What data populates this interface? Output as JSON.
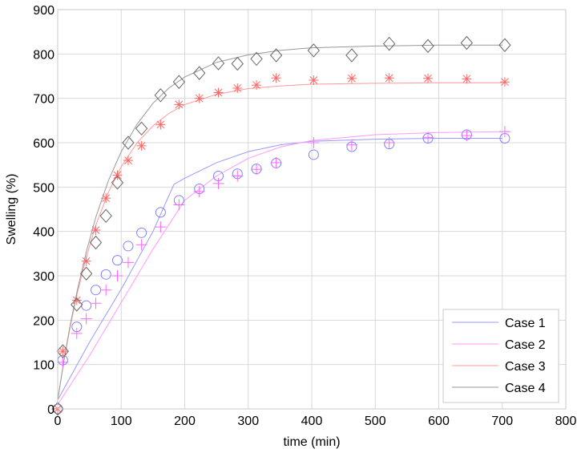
{
  "chart_data": {
    "type": "scatter",
    "title": "",
    "xlabel": "time (min)",
    "ylabel": "Swelling (%)",
    "xlim": [
      0,
      800
    ],
    "ylim": [
      0,
      900
    ],
    "xticks": [
      0,
      100,
      200,
      300,
      400,
      500,
      600,
      700,
      800
    ],
    "yticks": [
      0,
      100,
      200,
      300,
      400,
      500,
      600,
      700,
      800,
      900
    ],
    "grid": true,
    "legend_position": "bottom-right",
    "x": [
      0,
      8,
      30,
      45,
      60,
      76,
      94,
      111,
      132,
      162,
      191,
      223,
      253,
      283,
      313,
      344,
      403,
      463,
      522,
      583,
      644,
      704
    ],
    "series": [
      {
        "name": "Case 1",
        "color": "#8080ff",
        "marker": "circle",
        "values": [
          0,
          110,
          185,
          233,
          268,
          303,
          335,
          367,
          397,
          443,
          470,
          496,
          525,
          530,
          541,
          554,
          573,
          591,
          597,
          610,
          618,
          610
        ],
        "line_x": [
          0,
          50,
          100,
          150,
          183,
          200,
          250,
          300,
          350,
          400,
          500,
          600,
          700
        ],
        "line_y": [
          20,
          150,
          270,
          400,
          506,
          520,
          555,
          580,
          595,
          603,
          608,
          610,
          610
        ]
      },
      {
        "name": "Case 2",
        "color": "#ff66ff",
        "marker": "plus",
        "values": [
          0,
          105,
          170,
          203,
          238,
          268,
          300,
          330,
          370,
          410,
          460,
          490,
          508,
          525,
          540,
          555,
          600,
          595,
          600,
          612,
          616,
          625
        ],
        "line_x": [
          0,
          50,
          100,
          150,
          200,
          250,
          300,
          350,
          400,
          500,
          600,
          700
        ],
        "line_y": [
          10,
          120,
          240,
          360,
          470,
          525,
          565,
          590,
          605,
          618,
          623,
          625
        ]
      },
      {
        "name": "Case 3",
        "color": "#ff6666",
        "marker": "star",
        "values": [
          0,
          130,
          245,
          333,
          403,
          475,
          527,
          560,
          593,
          641,
          686,
          700,
          713,
          723,
          730,
          746,
          741,
          745,
          746,
          745,
          744,
          737
        ],
        "line_x": [
          0,
          10,
          20,
          30,
          45,
          60,
          80,
          100,
          125,
          150,
          175,
          200,
          250,
          300,
          350,
          400,
          500,
          600,
          700
        ],
        "line_y": [
          20,
          109,
          187,
          256,
          342,
          414,
          489,
          546,
          600,
          638,
          666,
          686,
          709,
          722,
          728,
          732,
          734,
          735,
          735
        ]
      },
      {
        "name": "Case 4",
        "color": "#666666",
        "marker": "diamond",
        "values": [
          0,
          130,
          235,
          305,
          375,
          435,
          510,
          600,
          632,
          707,
          737,
          757,
          779,
          778,
          789,
          797,
          808,
          797,
          823,
          818,
          825,
          820
        ],
        "line_x": [
          0,
          10,
          20,
          30,
          45,
          60,
          80,
          100,
          125,
          150,
          175,
          200,
          250,
          300,
          350,
          400,
          500,
          600,
          700
        ],
        "line_y": [
          20,
          111,
          191,
          262,
          354,
          432,
          515,
          580,
          642,
          689,
          723,
          748,
          781,
          798,
          808,
          814,
          818,
          820,
          820
        ]
      }
    ]
  }
}
